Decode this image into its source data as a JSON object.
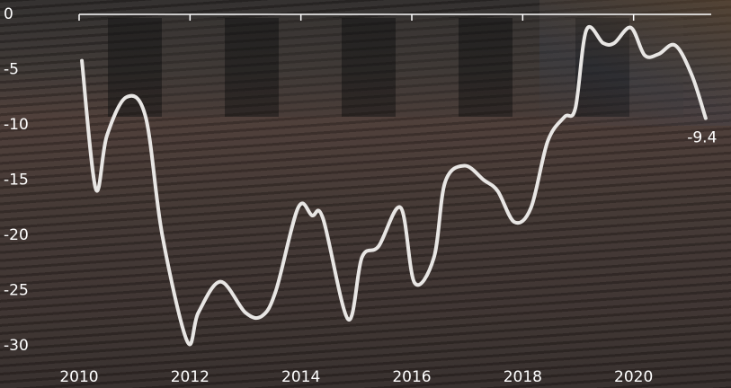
{
  "chart_data": {
    "type": "line",
    "x": [
      2010.05,
      2010.3,
      2010.5,
      2010.85,
      2011.2,
      2011.5,
      2011.95,
      2012.15,
      2012.55,
      2013.0,
      2013.3,
      2013.55,
      2013.95,
      2014.2,
      2014.4,
      2014.85,
      2015.1,
      2015.4,
      2015.8,
      2016.05,
      2016.4,
      2016.6,
      2016.95,
      2017.3,
      2017.55,
      2017.85,
      2018.15,
      2018.45,
      2018.75,
      2018.95,
      2019.15,
      2019.45,
      2019.65,
      2019.95,
      2020.2,
      2020.45,
      2020.75,
      2021.05,
      2021.3
    ],
    "series": [
      {
        "color": "#e8e6e4",
        "values": [
          -4.2,
          -15.8,
          -11,
          -7.5,
          -9.3,
          -20,
          -29.6,
          -27,
          -24.2,
          -27,
          -27.3,
          -25,
          -17.5,
          -18.2,
          -18.5,
          -27.6,
          -22,
          -21,
          -17.5,
          -24.3,
          -22,
          -15.2,
          -13.7,
          -15,
          -16,
          -18.8,
          -17.5,
          -11.5,
          -9.3,
          -8.5,
          -1.4,
          -2.6,
          -2.6,
          -1.2,
          -3.7,
          -3.6,
          -2.8,
          -5.5,
          -9.4
        ]
      }
    ],
    "xlim": [
      2010,
      2021.4
    ],
    "ylim": [
      -30,
      0
    ],
    "xticks": [
      2010,
      2012,
      2014,
      2016,
      2018,
      2020
    ],
    "yticks": [
      0,
      -5,
      -10,
      -15,
      -20,
      -25,
      -30
    ]
  }
}
